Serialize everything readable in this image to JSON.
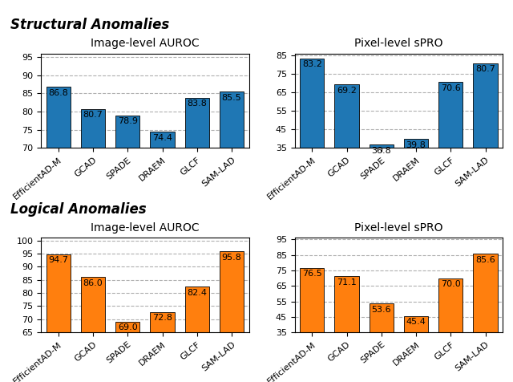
{
  "chart_data": [
    {
      "type": "bar",
      "title": "Image-level AUROC",
      "annotations": [
        "Structural Anomalies"
      ],
      "categories": [
        "EfficientAD-M",
        "GCAD",
        "SPADE",
        "DRAEM",
        "GLCF",
        "SAM-LAD"
      ],
      "values": [
        86.8,
        80.7,
        78.9,
        74.4,
        83.8,
        85.5
      ],
      "ylim": [
        70,
        96
      ],
      "yticks": [
        70,
        75,
        80,
        85,
        90,
        95
      ],
      "color": "#1f77b4",
      "grid": true,
      "data_labels": true
    },
    {
      "type": "bar",
      "title": "Pixel-level sPRO",
      "categories": [
        "EfficientAD-M",
        "GCAD",
        "SPADE",
        "DRAEM",
        "GLCF",
        "SAM-LAD"
      ],
      "values": [
        83.2,
        69.2,
        36.8,
        39.8,
        70.6,
        80.7
      ],
      "ylim": [
        35,
        86
      ],
      "yticks": [
        35,
        45,
        55,
        65,
        75,
        85
      ],
      "color": "#1f77b4",
      "grid": true,
      "data_labels": true
    },
    {
      "type": "bar",
      "title": "Image-level AUROC",
      "annotations": [
        "Logical Anomalies"
      ],
      "categories": [
        "EfficientAD-M",
        "GCAD",
        "SPADE",
        "DRAEM",
        "GLCF",
        "SAM-LAD"
      ],
      "values": [
        94.7,
        86.0,
        69.0,
        72.8,
        82.4,
        95.8
      ],
      "ylim": [
        65,
        101
      ],
      "yticks": [
        65,
        70,
        75,
        80,
        85,
        90,
        95,
        100
      ],
      "color": "#ff7f0e",
      "grid": true,
      "data_labels": true
    },
    {
      "type": "bar",
      "title": "Pixel-level sPRO",
      "categories": [
        "EfficientAD-M",
        "GCAD",
        "SPADE",
        "DRAEM",
        "GLCF",
        "SAM-LAD"
      ],
      "values": [
        76.5,
        71.1,
        53.6,
        45.4,
        70.0,
        85.6
      ],
      "ylim": [
        35,
        96
      ],
      "yticks": [
        35,
        45,
        55,
        65,
        75,
        85,
        95
      ],
      "color": "#ff7f0e",
      "grid": true,
      "data_labels": true
    }
  ]
}
